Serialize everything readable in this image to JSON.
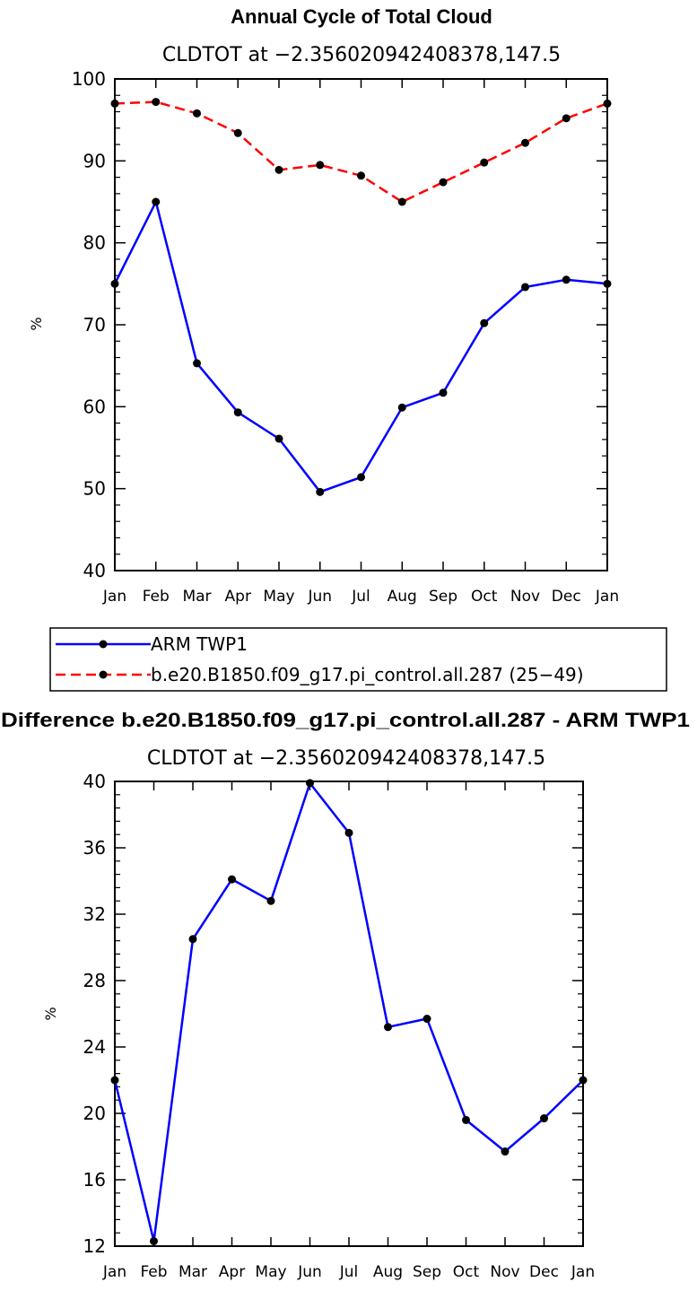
{
  "colors": {
    "obs": "#0000ff",
    "model": "#ff0000",
    "marker": "#000000"
  },
  "chart_data": [
    {
      "type": "line",
      "title": "Annual Cycle of Total Cloud",
      "subtitle": "CLDTOT at −2.356020942408378,147.5",
      "xlabel": "",
      "ylabel": "%",
      "categories": [
        "Jan",
        "Feb",
        "Mar",
        "Apr",
        "May",
        "Jun",
        "Jul",
        "Aug",
        "Sep",
        "Oct",
        "Nov",
        "Dec",
        "Jan"
      ],
      "ylim": [
        40,
        100
      ],
      "yticks": [
        "40",
        "50",
        "60",
        "70",
        "80",
        "90",
        "100"
      ],
      "series": [
        {
          "name": "ARM TWP1",
          "style": "solid",
          "color": "#0000ff",
          "values": [
            75.0,
            85.0,
            65.3,
            59.3,
            56.1,
            49.6,
            51.4,
            59.9,
            61.7,
            70.2,
            74.6,
            75.5,
            75.0
          ]
        },
        {
          "name": "b.e20.B1850.f09_g17.pi_control.all.287 (25−49)",
          "style": "dashed",
          "color": "#ff0000",
          "values": [
            97.0,
            97.2,
            95.8,
            93.4,
            88.9,
            89.5,
            88.2,
            85.0,
            87.4,
            89.8,
            92.2,
            95.2,
            97.0
          ]
        }
      ],
      "legend": "below"
    },
    {
      "type": "line",
      "title": "Difference b.e20.B1850.f09_g17.pi_control.all.287 - ARM TWP1",
      "subtitle": "CLDTOT at −2.356020942408378,147.5",
      "xlabel": "",
      "ylabel": "%",
      "categories": [
        "Jan",
        "Feb",
        "Mar",
        "Apr",
        "May",
        "Jun",
        "Jul",
        "Aug",
        "Sep",
        "Oct",
        "Nov",
        "Dec",
        "Jan"
      ],
      "ylim": [
        12,
        40
      ],
      "yticks": [
        "12",
        "16",
        "20",
        "24",
        "28",
        "32",
        "36",
        "40"
      ],
      "series": [
        {
          "style": "solid",
          "color": "#0000ff",
          "values": [
            22.0,
            12.3,
            30.5,
            34.1,
            32.8,
            39.9,
            36.9,
            25.2,
            25.7,
            19.6,
            17.7,
            19.7,
            22.0
          ]
        }
      ]
    }
  ]
}
